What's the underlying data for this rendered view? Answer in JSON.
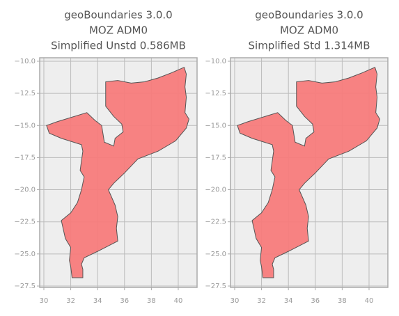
{
  "chart_data": [
    {
      "type": "map",
      "title": [
        "geoBoundaries 3.0.0",
        "MOZ ADM0",
        "Simplified Unstd 0.586MB"
      ],
      "xlim": [
        29.69,
        41.4
      ],
      "ylim": [
        -27.61,
        -9.73
      ],
      "xticks": [
        30,
        32,
        34,
        36,
        38,
        40
      ],
      "yticks": [
        {
          "value": -10,
          "label": "−10.0"
        },
        {
          "value": -12.5,
          "label": "−12.5"
        },
        {
          "value": -15,
          "label": "−15.0"
        },
        {
          "value": -17.5,
          "label": "−17.5"
        },
        {
          "value": -20,
          "label": "−20.0"
        },
        {
          "value": -22.5,
          "label": "−22.5"
        },
        {
          "value": -25,
          "label": "−25.0"
        },
        {
          "value": -27.5,
          "label": "−27.5"
        }
      ],
      "grid": true,
      "facecolor": "#f77b7b",
      "edgecolor": "#555555",
      "lon": [
        40.44,
        40.6,
        40.5,
        40.6,
        40.5,
        40.8,
        40.6,
        39.8,
        38.5,
        37.0,
        36.0,
        35.2,
        34.8,
        35.3,
        35.5,
        35.4,
        35.5,
        34.0,
        33.0,
        32.8,
        32.9,
        32.9,
        32.1,
        32.0,
        31.9,
        32.0,
        31.6,
        31.3,
        32.0,
        32.5,
        32.8,
        33.0,
        32.7,
        32.9,
        32.8,
        31.3,
        30.4,
        30.2,
        31.0,
        33.2,
        33.8,
        34.3,
        34.5,
        35.2,
        35.3,
        35.9,
        35.8,
        35.2,
        34.6,
        34.6,
        35.5,
        36.5,
        37.5,
        38.5,
        39.5
      ],
      "lat": [
        -10.47,
        -11.0,
        -12.0,
        -12.8,
        -14.0,
        -14.5,
        -15.2,
        -16.2,
        -17.0,
        -17.6,
        -18.7,
        -19.5,
        -20.0,
        -21.2,
        -22.1,
        -23.0,
        -24.0,
        -24.8,
        -25.3,
        -25.8,
        -26.2,
        -26.85,
        -26.85,
        -26.0,
        -25.5,
        -24.5,
        -23.8,
        -22.4,
        -21.8,
        -21.0,
        -20.0,
        -19.0,
        -18.5,
        -17.0,
        -16.5,
        -16.0,
        -15.6,
        -15.0,
        -14.7,
        -14.0,
        -14.6,
        -15.0,
        -16.3,
        -16.6,
        -16.0,
        -15.5,
        -14.9,
        -14.3,
        -13.5,
        -11.6,
        -11.5,
        -11.7,
        -11.6,
        -11.3,
        -10.9
      ]
    },
    {
      "type": "map",
      "title": [
        "geoBoundaries 3.0.0",
        "MOZ ADM0",
        "Simplified Std 1.314MB"
      ],
      "xlim": [
        29.69,
        41.4
      ],
      "ylim": [
        -27.61,
        -9.73
      ],
      "xticks": [
        30,
        32,
        34,
        36,
        38,
        40
      ],
      "yticks": [
        {
          "value": -10,
          "label": "−10.0"
        },
        {
          "value": -12.5,
          "label": "−12.5"
        },
        {
          "value": -15,
          "label": "−15.0"
        },
        {
          "value": -17.5,
          "label": "−17.5"
        },
        {
          "value": -20,
          "label": "−20.0"
        },
        {
          "value": -22.5,
          "label": "−22.5"
        },
        {
          "value": -25,
          "label": "−25.0"
        },
        {
          "value": -27.5,
          "label": "−27.5"
        }
      ],
      "grid": true,
      "facecolor": "#f77b7b",
      "edgecolor": "#555555",
      "lon": [
        40.44,
        40.6,
        40.5,
        40.6,
        40.5,
        40.8,
        40.6,
        39.8,
        38.5,
        37.0,
        36.0,
        35.2,
        34.8,
        35.3,
        35.5,
        35.4,
        35.5,
        34.0,
        33.0,
        32.8,
        32.9,
        32.9,
        32.1,
        32.0,
        31.9,
        32.0,
        31.6,
        31.3,
        32.0,
        32.5,
        32.8,
        33.0,
        32.7,
        32.9,
        32.8,
        31.3,
        30.4,
        30.2,
        31.0,
        33.2,
        33.8,
        34.3,
        34.5,
        35.2,
        35.3,
        35.9,
        35.8,
        35.2,
        34.6,
        34.6,
        35.5,
        36.5,
        37.5,
        38.5,
        39.5
      ],
      "lat": [
        -10.47,
        -11.0,
        -12.0,
        -12.8,
        -14.0,
        -14.5,
        -15.2,
        -16.2,
        -17.0,
        -17.6,
        -18.7,
        -19.5,
        -20.0,
        -21.2,
        -22.1,
        -23.0,
        -24.0,
        -24.8,
        -25.3,
        -25.8,
        -26.2,
        -26.85,
        -26.85,
        -26.0,
        -25.5,
        -24.5,
        -23.8,
        -22.4,
        -21.8,
        -21.0,
        -20.0,
        -19.0,
        -18.5,
        -17.0,
        -16.5,
        -16.0,
        -15.6,
        -15.0,
        -14.7,
        -14.0,
        -14.6,
        -15.0,
        -16.3,
        -16.6,
        -16.0,
        -15.5,
        -14.9,
        -14.3,
        -13.5,
        -11.6,
        -11.5,
        -11.7,
        -11.6,
        -11.3,
        -10.9
      ]
    }
  ]
}
